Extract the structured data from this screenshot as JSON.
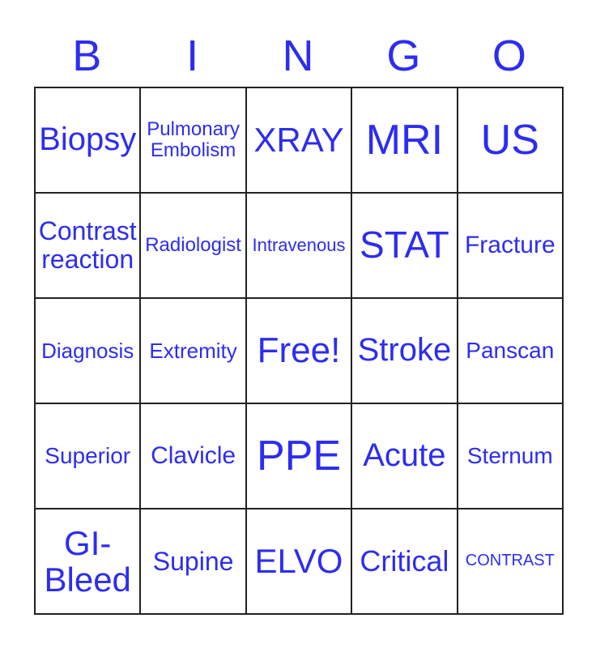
{
  "title": {
    "letters": [
      "B",
      "I",
      "N",
      "G",
      "O"
    ]
  },
  "colors": {
    "text": "#2d2df0",
    "grid_line": "#222222",
    "background": "#ffffff"
  },
  "grid": {
    "rows": 5,
    "cols": 5,
    "cells": [
      "Biopsy",
      "Pulmonary Embolism",
      "XRAY",
      "MRI",
      "US",
      "Contrast reaction",
      "Radiologist",
      "Intravenous",
      "STAT",
      "Fracture",
      "Diagnosis",
      "Extremity",
      "Free!",
      "Stroke",
      "Panscan",
      "Superior",
      "Clavicle",
      "PPE",
      "Acute",
      "Sternum",
      "GI-Bleed",
      "Supine",
      "ELVO",
      "Critical",
      "CONTRAST"
    ]
  }
}
